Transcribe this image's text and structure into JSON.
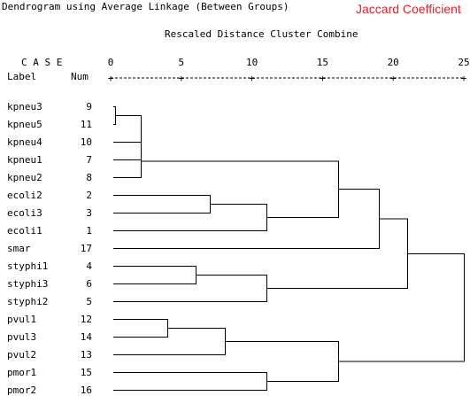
{
  "title": "Dendrogram using Average Linkage (Between Groups)",
  "subtitle": "Jaccard Coefficient",
  "scale_title": "Rescaled Distance Cluster Combine",
  "header": {
    "case_label": "C A S E",
    "label_col": "Label",
    "num_col": "Num"
  },
  "chart_data": {
    "type": "dendrogram",
    "title": "Dendrogram using Average Linkage (Between Groups)",
    "xlabel": "Rescaled Distance Cluster Combine",
    "xlim": [
      0,
      25
    ],
    "ticks": [
      0,
      5,
      10,
      15,
      20,
      25
    ],
    "leaves": [
      {
        "label": "kpneu3",
        "num": "9"
      },
      {
        "label": "kpneu5",
        "num": "11"
      },
      {
        "label": "kpneu4",
        "num": "10"
      },
      {
        "label": "kpneu1",
        "num": "7"
      },
      {
        "label": "kpneu2",
        "num": "8"
      },
      {
        "label": "ecoli2",
        "num": "2"
      },
      {
        "label": "ecoli3",
        "num": "3"
      },
      {
        "label": "ecoli1",
        "num": "1"
      },
      {
        "label": "smar",
        "num": "17"
      },
      {
        "label": "styphi1",
        "num": "4"
      },
      {
        "label": "styphi3",
        "num": "6"
      },
      {
        "label": "styphi2",
        "num": "5"
      },
      {
        "label": "pvul1",
        "num": "12"
      },
      {
        "label": "pvul3",
        "num": "14"
      },
      {
        "label": "pvul2",
        "num": "13"
      },
      {
        "label": "pmor1",
        "num": "15"
      },
      {
        "label": "pmor2",
        "num": "16"
      }
    ],
    "merges": [
      {
        "a": 0,
        "b": 1,
        "distance": 0.3
      },
      {
        "a": 17,
        "b": 2,
        "distance": 2.1
      },
      {
        "a": 18,
        "b": 3,
        "distance": 2.1
      },
      {
        "a": 19,
        "b": 4,
        "distance": 2.1
      },
      {
        "a": 5,
        "b": 6,
        "distance": 7.0
      },
      {
        "a": 21,
        "b": 7,
        "distance": 11.0
      },
      {
        "a": 9,
        "b": 10,
        "distance": 6.0
      },
      {
        "a": 23,
        "b": 11,
        "distance": 11.0
      },
      {
        "a": 12,
        "b": 13,
        "distance": 4.0
      },
      {
        "a": 25,
        "b": 14,
        "distance": 8.1
      },
      {
        "a": 15,
        "b": 16,
        "distance": 11.0
      },
      {
        "a": 20,
        "b": 22,
        "distance": 16.1
      },
      {
        "a": 28,
        "b": 8,
        "distance": 19.0
      },
      {
        "a": 29,
        "b": 24,
        "distance": 21.0
      },
      {
        "a": 26,
        "b": 27,
        "distance": 16.1
      },
      {
        "a": 30,
        "b": 31,
        "distance": 25.0
      }
    ]
  }
}
